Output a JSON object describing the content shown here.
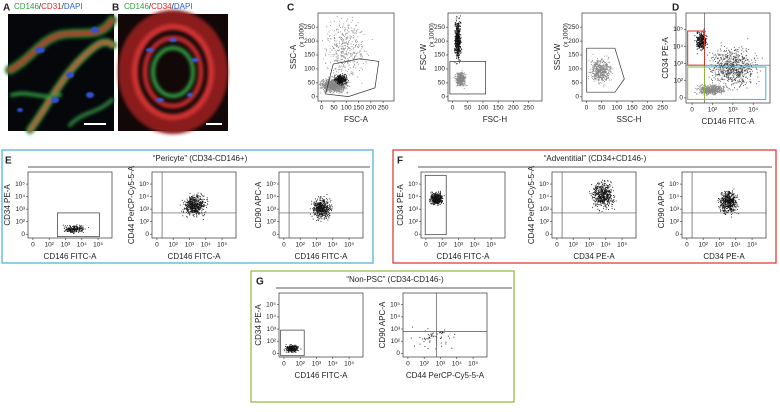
{
  "panels": {
    "A": {
      "label": "A",
      "title": [
        {
          "text": "CD146",
          "color": "#2e9e3a"
        },
        {
          "text": "/",
          "color": "#222222"
        },
        {
          "text": "CD31",
          "color": "#d22a2a"
        },
        {
          "text": "/",
          "color": "#222222"
        },
        {
          "text": "DAPI",
          "color": "#2a5fd2"
        }
      ]
    },
    "B": {
      "label": "B",
      "title": [
        {
          "text": "CD146",
          "color": "#2e9e3a"
        },
        {
          "text": "/",
          "color": "#222222"
        },
        {
          "text": "CD34",
          "color": "#d22a2a"
        },
        {
          "text": "/",
          "color": "#222222"
        },
        {
          "text": "DAPI",
          "color": "#2a5fd2"
        }
      ]
    },
    "C": {
      "label": "C",
      "plots": [
        {
          "y_label": "SSC-A",
          "y_unit": "(x 1000)",
          "x_label": "FSC-A",
          "y_ticks": [
            0,
            50,
            100,
            150,
            200,
            250
          ],
          "x_ticks": [
            0,
            50,
            100,
            150,
            200,
            250
          ]
        },
        {
          "y_label": "FSC-W",
          "y_unit": "(x 1000)",
          "x_label": "FSC-H",
          "y_ticks": [
            0,
            50,
            100,
            150,
            200,
            250
          ],
          "x_ticks": [
            0,
            50,
            100,
            150,
            200,
            250
          ]
        },
        {
          "y_label": "SSC-W",
          "y_unit": "(x 1000)",
          "x_label": "SSC-H",
          "y_ticks": [
            0,
            50,
            100,
            150,
            200,
            250
          ],
          "x_ticks": [
            0,
            50,
            100,
            150,
            200,
            250
          ]
        }
      ]
    },
    "D": {
      "label": "D",
      "plots": [
        {
          "y_label": "CD34 PE-A",
          "x_label": "CD146 FITC-A",
          "y_ticks": [
            "0",
            "10²",
            "10³",
            "10⁴",
            "10⁵"
          ],
          "x_ticks": [
            "0",
            "10²",
            "10³",
            "10⁴"
          ]
        }
      ]
    },
    "E": {
      "label": "E",
      "title": "“Pericyte” (CD34-CD146+)",
      "plots": [
        {
          "y_label": "CD34 PE-A",
          "x_label": "CD146 FITC-A",
          "y_ticks": [
            "0",
            "10²",
            "10³",
            "10⁴",
            "10⁵"
          ],
          "x_ticks": [
            "0",
            "10²",
            "10³",
            "10⁴",
            "10⁵"
          ]
        },
        {
          "y_label": "CD44 PerCP-Cy5-5-A",
          "x_label": "CD146 FITC-A",
          "y_ticks": [
            "0",
            "10²",
            "10³",
            "10⁴",
            "10⁵"
          ],
          "x_ticks": [
            "0",
            "10²",
            "10³",
            "10⁴",
            "10⁵"
          ]
        },
        {
          "y_label": "CD90 APC-A",
          "x_label": "CD146 FITC-A",
          "y_ticks": [
            "0",
            "10²",
            "10³",
            "10⁴",
            "10⁵"
          ],
          "x_ticks": [
            "0",
            "10²",
            "10³",
            "10⁴",
            "10⁵"
          ]
        }
      ]
    },
    "F": {
      "label": "F",
      "title": "“Adventitial” (CD34+CD146-)",
      "plots": [
        {
          "y_label": "CD34 PE-A",
          "x_label": "CD146 FITC-A",
          "y_ticks": [
            "0",
            "10²",
            "10³",
            "10⁴",
            "10⁵"
          ],
          "x_ticks": [
            "0",
            "10²",
            "10³",
            "10⁴",
            "10⁵"
          ]
        },
        {
          "y_label": "CD44 PerCP-Cy5-5-A",
          "x_label": "CD34 PE-A",
          "y_ticks": [
            "0",
            "10²",
            "10³",
            "10⁴",
            "10⁵"
          ],
          "x_ticks": [
            "0",
            "10²",
            "10³",
            "10⁴",
            "10⁵"
          ]
        },
        {
          "y_label": "CD90 APC-A",
          "x_label": "CD34 PE-A",
          "y_ticks": [
            "0",
            "10²",
            "10³",
            "10⁴",
            "10⁵"
          ],
          "x_ticks": [
            "0",
            "10²",
            "10³",
            "10⁴",
            "10⁵"
          ]
        }
      ]
    },
    "G": {
      "label": "G",
      "title": "“Non-PSC” (CD34-CD146-)",
      "plots": [
        {
          "y_label": "CD34 PE-A",
          "x_label": "CD146 FITC-A",
          "y_ticks": [
            "0",
            "10²",
            "10³",
            "10⁴",
            "10⁵"
          ],
          "x_ticks": [
            "0",
            "10²",
            "10³",
            "10⁴",
            "10⁵"
          ]
        },
        {
          "y_label": "CD90 APC-A",
          "x_label": "CD44 PerCP-Cy5-5-A",
          "y_ticks": [
            "0",
            "10²",
            "10³",
            "10⁴",
            "10⁵"
          ],
          "x_ticks": [
            "0",
            "10²",
            "10³",
            "10⁴",
            "10⁵"
          ]
        }
      ]
    }
  }
}
